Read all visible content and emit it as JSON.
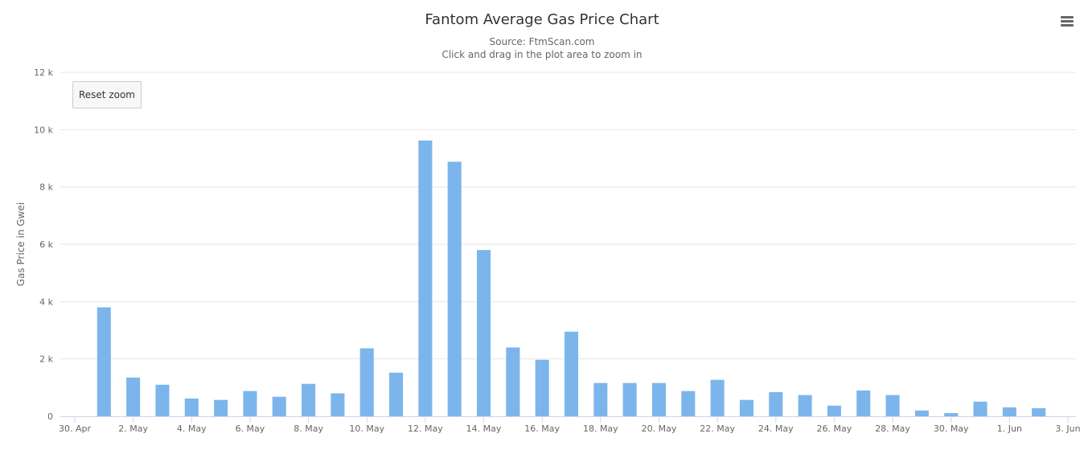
{
  "title": "Fantom Average Gas Price Chart",
  "subtitle": "Source: FtmScan.com",
  "hint": "Click and drag in the plot area to zoom in",
  "reset_zoom_label": "Reset zoom",
  "menu_icon": "hamburger-menu-icon",
  "colors": {
    "bar": "#7cb5ec",
    "grid": "#e6e6e6",
    "axis": "#ccd6eb"
  },
  "chart_data": {
    "type": "bar",
    "ylabel": "Gas Price in Gwei",
    "ylim": [
      0,
      12000
    ],
    "yticks": [
      0,
      2000,
      4000,
      6000,
      8000,
      10000,
      12000
    ],
    "ytick_labels": [
      "0",
      "2 k",
      "4 k",
      "6 k",
      "8 k",
      "10 k",
      "12 k"
    ],
    "xlim": [
      "2021-04-30",
      "2021-06-03"
    ],
    "xticks": [
      "2021-04-30",
      "2021-05-02",
      "2021-05-04",
      "2021-05-06",
      "2021-05-08",
      "2021-05-10",
      "2021-05-12",
      "2021-05-14",
      "2021-05-16",
      "2021-05-18",
      "2021-05-20",
      "2021-05-22",
      "2021-05-24",
      "2021-05-26",
      "2021-05-28",
      "2021-05-30",
      "2021-06-01",
      "2021-06-03"
    ],
    "xtick_labels": [
      "30. Apr",
      "2. May",
      "4. May",
      "6. May",
      "8. May",
      "10. May",
      "12. May",
      "14. May",
      "16. May",
      "18. May",
      "20. May",
      "22. May",
      "24. May",
      "26. May",
      "28. May",
      "30. May",
      "1. Jun",
      "3. Jun"
    ],
    "grid": true,
    "legend": false,
    "x": [
      "2021-05-01",
      "2021-05-02",
      "2021-05-03",
      "2021-05-04",
      "2021-05-05",
      "2021-05-06",
      "2021-05-07",
      "2021-05-08",
      "2021-05-09",
      "2021-05-10",
      "2021-05-11",
      "2021-05-12",
      "2021-05-13",
      "2021-05-14",
      "2021-05-15",
      "2021-05-16",
      "2021-05-17",
      "2021-05-18",
      "2021-05-19",
      "2021-05-20",
      "2021-05-21",
      "2021-05-22",
      "2021-05-23",
      "2021-05-24",
      "2021-05-25",
      "2021-05-26",
      "2021-05-27",
      "2021-05-28",
      "2021-05-29",
      "2021-05-30",
      "2021-05-31",
      "2021-06-01",
      "2021-06-02"
    ],
    "values": [
      3800,
      1350,
      1100,
      620,
      570,
      880,
      680,
      1130,
      800,
      2370,
      1520,
      9620,
      8880,
      5800,
      2400,
      1970,
      2950,
      1160,
      1160,
      1160,
      880,
      1270,
      570,
      840,
      740,
      370,
      900,
      740,
      200,
      110,
      510,
      310,
      280
    ]
  }
}
